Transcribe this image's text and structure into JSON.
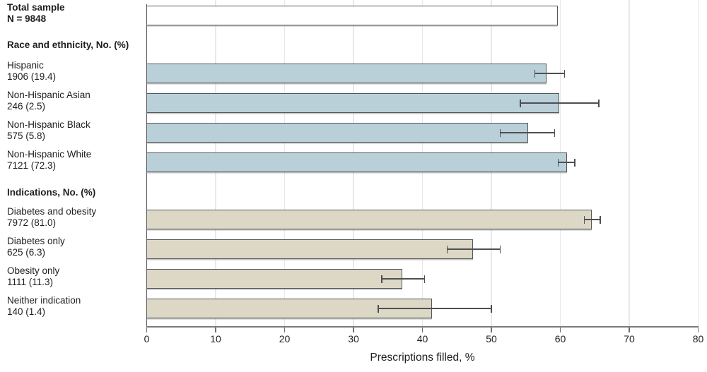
{
  "chart_data": {
    "type": "bar",
    "orientation": "horizontal",
    "xlabel": "Prescriptions filled, %",
    "xlim": [
      0,
      80
    ],
    "xticks": [
      0,
      10,
      20,
      30,
      40,
      50,
      60,
      70,
      80
    ],
    "grid": "vertical-light-gray",
    "error_bars": "95% CI whiskers with caps",
    "bar_colors": {
      "total": "#ffffff",
      "race": "#bad0d9",
      "indications": "#ddd7c6"
    },
    "sections": [
      {
        "id": "total",
        "header": "",
        "rows": [
          {
            "label": "Total sample",
            "sublabel": "N = 9848",
            "bold": true,
            "value": 59.7,
            "ci_low": null,
            "ci_high": null,
            "color_key": "total"
          }
        ]
      },
      {
        "id": "race",
        "header": "Race and ethnicity, No. (%)",
        "rows": [
          {
            "label": "Hispanic",
            "sublabel": "1906 (19.4)",
            "bold": false,
            "value": 58.1,
            "ci_low": 56.3,
            "ci_high": 60.6,
            "color_key": "race"
          },
          {
            "label": "Non-Hispanic Asian",
            "sublabel": "246 (2.5)",
            "bold": false,
            "value": 59.9,
            "ci_low": 54.2,
            "ci_high": 65.6,
            "color_key": "race"
          },
          {
            "label": "Non-Hispanic Black",
            "sublabel": "575 (5.8)",
            "bold": false,
            "value": 55.4,
            "ci_low": 51.3,
            "ci_high": 59.2,
            "color_key": "race"
          },
          {
            "label": "Non-Hispanic White",
            "sublabel": "7121 (72.3)",
            "bold": false,
            "value": 61.0,
            "ci_low": 59.7,
            "ci_high": 62.1,
            "color_key": "race"
          }
        ]
      },
      {
        "id": "indications",
        "header": "Indications, No. (%)",
        "rows": [
          {
            "label": "Diabetes and obesity",
            "sublabel": "7972 (81.0)",
            "bold": false,
            "value": 64.6,
            "ci_low": 63.5,
            "ci_high": 65.8,
            "color_key": "indications"
          },
          {
            "label": "Diabetes only",
            "sublabel": "625 (6.3)",
            "bold": false,
            "value": 47.4,
            "ci_low": 43.6,
            "ci_high": 51.3,
            "color_key": "indications"
          },
          {
            "label": "Obesity only",
            "sublabel": "1111 (11.3)",
            "bold": false,
            "value": 37.2,
            "ci_low": 34.1,
            "ci_high": 40.3,
            "color_key": "indications"
          },
          {
            "label": "Neither indication",
            "sublabel": "140 (1.4)",
            "bold": false,
            "value": 41.5,
            "ci_low": 33.6,
            "ci_high": 50.0,
            "color_key": "indications"
          }
        ]
      }
    ]
  }
}
